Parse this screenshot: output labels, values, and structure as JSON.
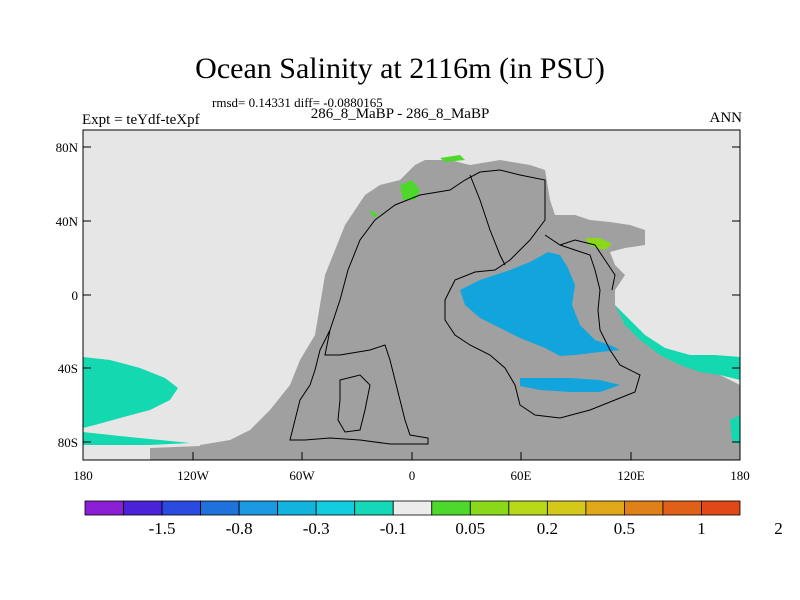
{
  "title": "Ocean Salinity at 2116m (in PSU)",
  "stats": "rmsd= 0.14331 diff= -0.0880165",
  "experiment": "Expt = teYdf-teXpf",
  "period": "286_8_MaBP - 286_8_MaBP",
  "season": "ANN",
  "lat_ticks": [
    "80N",
    "40N",
    "0",
    "40S",
    "80S"
  ],
  "lon_ticks": [
    "180",
    "120W",
    "60W",
    "0",
    "60E",
    "120E",
    "180"
  ],
  "colorbar": {
    "colors": [
      "#8a1fd6",
      "#4a22d8",
      "#2a4ae0",
      "#1f72dc",
      "#1a98e0",
      "#12b4de",
      "#12cce0",
      "#14d8b8",
      "#ececec",
      "#4fd82c",
      "#8ad81a",
      "#b8d81a",
      "#d4c81a",
      "#e0a818",
      "#e08018",
      "#e06018",
      "#e04818"
    ],
    "labels": [
      "-1.5",
      "-0.8",
      "-0.3",
      "-0.1",
      "0.05",
      "0.2",
      "0.5",
      "1",
      "2"
    ]
  }
}
